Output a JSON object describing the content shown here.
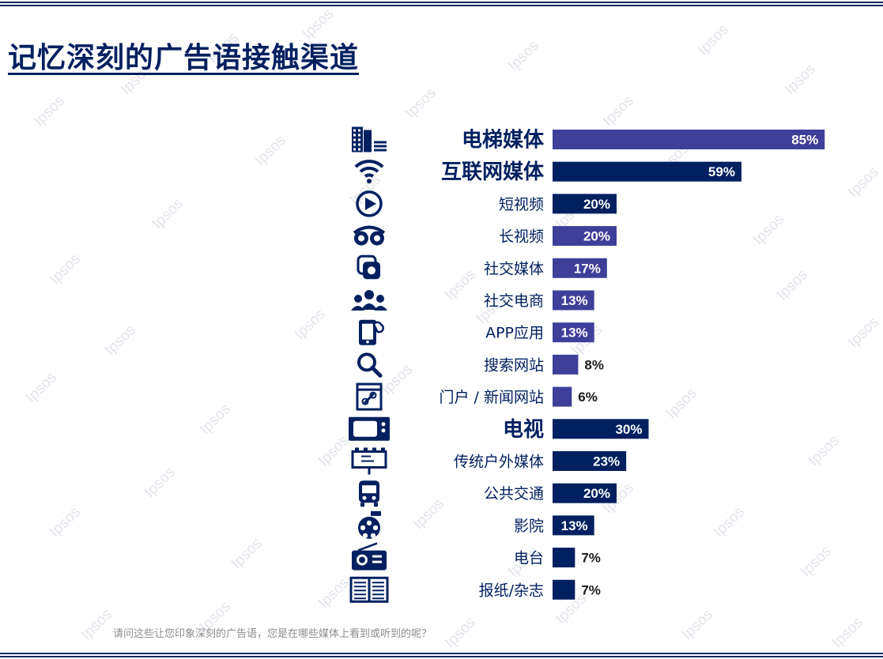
{
  "title": "记忆深刻的广告语接触渠道",
  "watermark": "Ipsos",
  "footnote": "请问这些让您印象深刻的广告语，您是在哪些媒体上看到或听到的呢？",
  "colors": {
    "navy": "#002060",
    "purple": "#3f3f9a",
    "white": "#ffffff"
  },
  "chart_data": {
    "type": "bar",
    "orientation": "horizontal",
    "title": "记忆深刻的广告语接触渠道",
    "xlim": [
      0,
      100
    ],
    "unit": "%",
    "categories": [
      "电梯媒体",
      "互联网媒体",
      "短视频",
      "长视频",
      "社交媒体",
      "社交电商",
      "APP应用",
      "搜索网站",
      "门户 / 新闻网站",
      "电视",
      "传统户外媒体",
      "公共交通",
      "影院",
      "电台",
      "报纸/杂志"
    ],
    "values": [
      85,
      59,
      20,
      20,
      17,
      13,
      13,
      8,
      6,
      30,
      23,
      20,
      13,
      7,
      7
    ],
    "labels": [
      "85%",
      "59%",
      "20%",
      "20%",
      "17%",
      "13%",
      "13%",
      "8%",
      "6%",
      "30%",
      "23%",
      "20%",
      "13%",
      "7%",
      "7%"
    ],
    "bar_colors": [
      "purple",
      "navy",
      "navy",
      "purple",
      "purple",
      "purple",
      "purple",
      "purple",
      "purple",
      "navy",
      "navy",
      "navy",
      "navy",
      "navy",
      "navy"
    ],
    "emphasis": [
      true,
      true,
      false,
      false,
      false,
      false,
      false,
      false,
      false,
      true,
      false,
      false,
      false,
      false,
      false
    ],
    "icons": [
      "elevator-building-icon",
      "wifi-icon",
      "play-icon",
      "video-glasses-icon",
      "social-media-icon",
      "social-people-icon",
      "app-icon",
      "search-icon",
      "web-browser-icon",
      "tv-icon",
      "billboard-icon",
      "bus-icon",
      "film-reel-icon",
      "radio-icon",
      "newspaper-icon"
    ]
  }
}
